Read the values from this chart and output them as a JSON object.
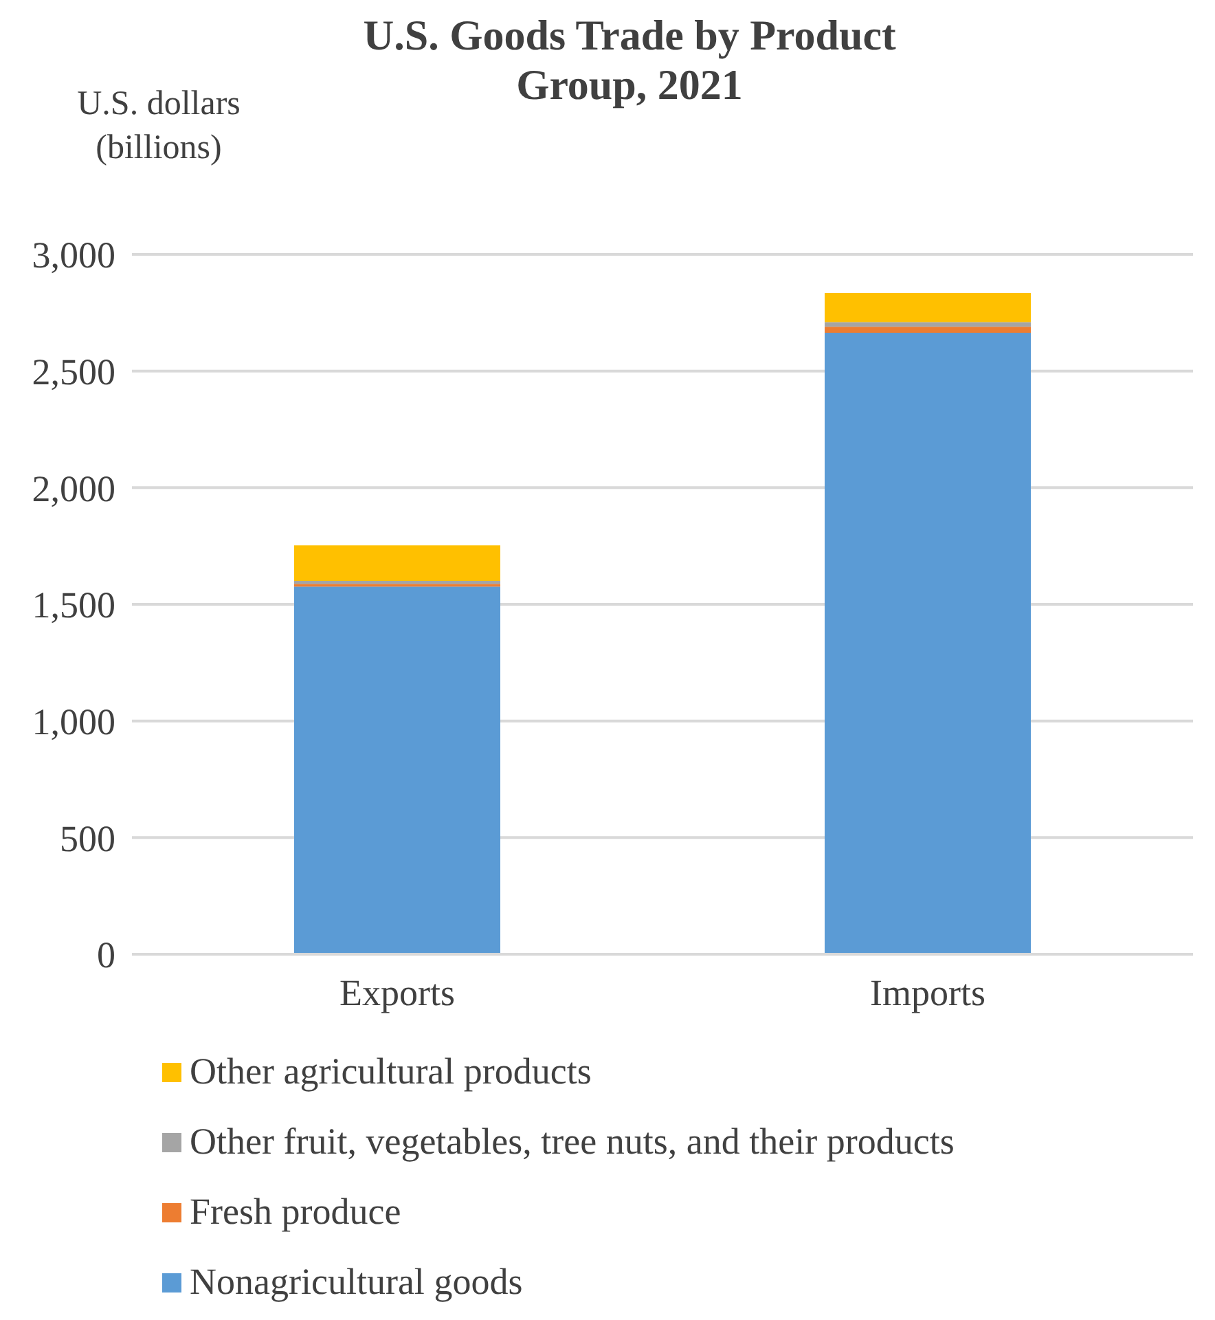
{
  "chart_data": {
    "type": "bar",
    "title": "U.S. Goods Trade by Product Group, 2021",
    "ylabel": "U.S. dollars (billions)",
    "categories": [
      "Exports",
      "Imports"
    ],
    "stacked": true,
    "series": [
      {
        "name": "Nonagricultural goods",
        "color": "#5b9bd5",
        "values": [
          1576,
          2664
        ]
      },
      {
        "name": "Fresh produce",
        "color": "#ed7d31",
        "values": [
          12,
          26
        ]
      },
      {
        "name": "Other fruit, vegetables, tree nuts, and their products",
        "color": "#a5a5a5",
        "values": [
          12,
          20
        ]
      },
      {
        "name": "Other agricultural products",
        "color": "#ffc000",
        "values": [
          153,
          125
        ]
      }
    ],
    "ylim": [
      0,
      3000
    ],
    "yticks": [
      {
        "value": 0,
        "label": "0"
      },
      {
        "value": 500,
        "label": "500"
      },
      {
        "value": 1000,
        "label": "1,000"
      },
      {
        "value": 1500,
        "label": "1,500"
      },
      {
        "value": 2000,
        "label": "2,000"
      },
      {
        "value": 2500,
        "label": "2,500"
      },
      {
        "value": 3000,
        "label": "3,000"
      }
    ],
    "grid": "y",
    "legend": "bottom"
  }
}
